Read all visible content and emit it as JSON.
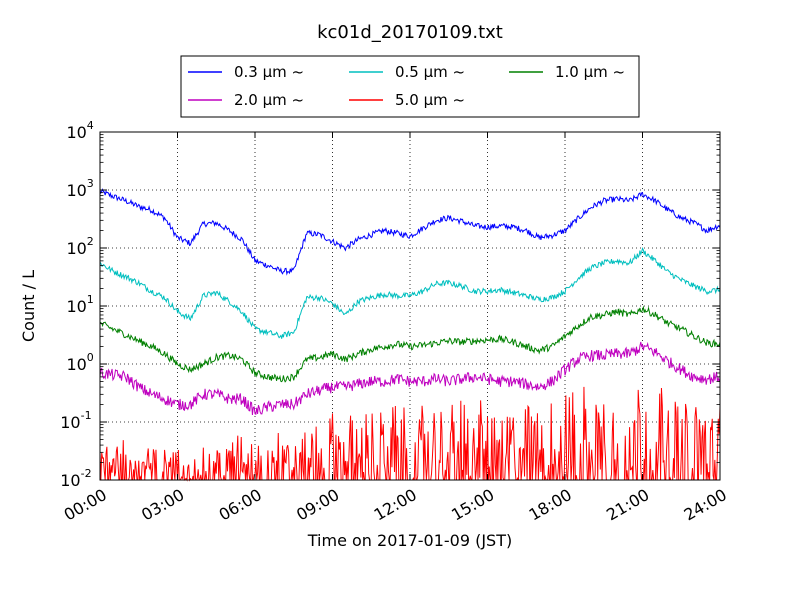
{
  "chart_data": {
    "type": "line",
    "title": "kc01d_20170109.txt",
    "xlabel": "Time on 2017-01-09 (JST)",
    "ylabel": "Count / L",
    "yscale": "log",
    "ylim": [
      0.01,
      10000
    ],
    "xlim": [
      "00:00",
      "24:00"
    ],
    "grid": true,
    "legend_placement": "top-center",
    "x_tick_labels": [
      "00:00",
      "03:00",
      "06:00",
      "09:00",
      "12:00",
      "15:00",
      "18:00",
      "21:00",
      "24:00"
    ],
    "y_tick_labels": [
      {
        "base": "10",
        "exp": "-2"
      },
      {
        "base": "10",
        "exp": "-1"
      },
      {
        "base": "10",
        "exp": "0"
      },
      {
        "base": "10",
        "exp": "1"
      },
      {
        "base": "10",
        "exp": "2"
      },
      {
        "base": "10",
        "exp": "3"
      },
      {
        "base": "10",
        "exp": "4"
      }
    ],
    "x_hours": [
      0,
      0.5,
      1,
      1.5,
      2,
      2.5,
      3,
      3.5,
      4,
      4.5,
      5,
      5.5,
      6,
      6.5,
      7,
      7.5,
      8,
      8.5,
      9,
      9.5,
      10,
      10.5,
      11,
      11.5,
      12,
      12.5,
      13,
      13.5,
      14,
      14.5,
      15,
      15.5,
      16,
      16.5,
      17,
      17.5,
      18,
      18.5,
      19,
      19.5,
      20,
      20.5,
      21,
      21.5,
      22,
      22.5,
      23,
      23.5,
      24
    ],
    "series": [
      {
        "name": "0.3 μm ~",
        "color": "#0000ff",
        "noise": 0.05,
        "values": [
          950,
          780,
          650,
          520,
          450,
          330,
          150,
          120,
          260,
          270,
          200,
          140,
          60,
          50,
          40,
          40,
          180,
          170,
          130,
          100,
          140,
          170,
          200,
          180,
          160,
          220,
          300,
          330,
          290,
          240,
          230,
          240,
          230,
          200,
          150,
          165,
          200,
          320,
          500,
          650,
          700,
          650,
          850,
          650,
          450,
          330,
          270,
          200,
          250
        ]
      },
      {
        "name": "0.5 μm ~",
        "color": "#00bfbf",
        "noise": 0.05,
        "values": [
          55,
          40,
          32,
          25,
          18,
          14,
          8,
          6,
          15,
          17,
          12,
          8,
          4,
          3.5,
          3,
          3.5,
          14,
          14,
          11,
          7,
          12,
          14,
          16,
          15,
          15,
          18,
          24,
          25,
          22,
          18,
          18,
          19,
          17,
          15,
          13,
          14,
          18,
          30,
          45,
          55,
          60,
          55,
          90,
          60,
          38,
          28,
          22,
          18,
          19
        ]
      },
      {
        "name": "1.0 μm ~",
        "color": "#008000",
        "noise": 0.06,
        "values": [
          5,
          4,
          3.2,
          2.5,
          2,
          1.5,
          1,
          0.8,
          1,
          1.3,
          1.4,
          1.2,
          0.7,
          0.6,
          0.55,
          0.6,
          1.2,
          1.3,
          1.5,
          1.2,
          1.5,
          1.8,
          2,
          2.2,
          2,
          2.1,
          2.3,
          2.5,
          2.4,
          2.5,
          2.6,
          2.7,
          2.4,
          2,
          1.7,
          2,
          3,
          4.5,
          6.5,
          7,
          8,
          7,
          9,
          7,
          5,
          4,
          3,
          2.3,
          2.2
        ]
      },
      {
        "name": "2.0 μm ~",
        "color": "#bf00bf",
        "noise": 0.1,
        "values": [
          0.7,
          0.65,
          0.6,
          0.4,
          0.3,
          0.25,
          0.2,
          0.2,
          0.3,
          0.3,
          0.25,
          0.25,
          0.15,
          0.18,
          0.2,
          0.2,
          0.3,
          0.35,
          0.4,
          0.4,
          0.45,
          0.5,
          0.5,
          0.55,
          0.5,
          0.5,
          0.55,
          0.5,
          0.55,
          0.6,
          0.55,
          0.5,
          0.5,
          0.45,
          0.4,
          0.5,
          0.8,
          1.2,
          1.4,
          1.4,
          1.5,
          1.5,
          2,
          1.6,
          1.1,
          0.8,
          0.6,
          0.55,
          0.6
        ]
      },
      {
        "name": "5.0 μm ~",
        "color": "#ff0000",
        "noise": 0.0,
        "spiky": true,
        "values": [
          0.01,
          0.012,
          0.015,
          0.01,
          0.01,
          0.01,
          0.01,
          0.01,
          0.01,
          0.01,
          0.012,
          0.015,
          0.012,
          0.015,
          0.015,
          0.012,
          0.015,
          0.02,
          0.025,
          0.02,
          0.03,
          0.025,
          0.025,
          0.03,
          0.025,
          0.03,
          0.03,
          0.03,
          0.035,
          0.035,
          0.03,
          0.03,
          0.025,
          0.03,
          0.025,
          0.035,
          0.04,
          0.05,
          0.06,
          0.05,
          0.05,
          0.05,
          0.06,
          0.05,
          0.04,
          0.03,
          0.03,
          0.03,
          0.03
        ]
      }
    ]
  }
}
